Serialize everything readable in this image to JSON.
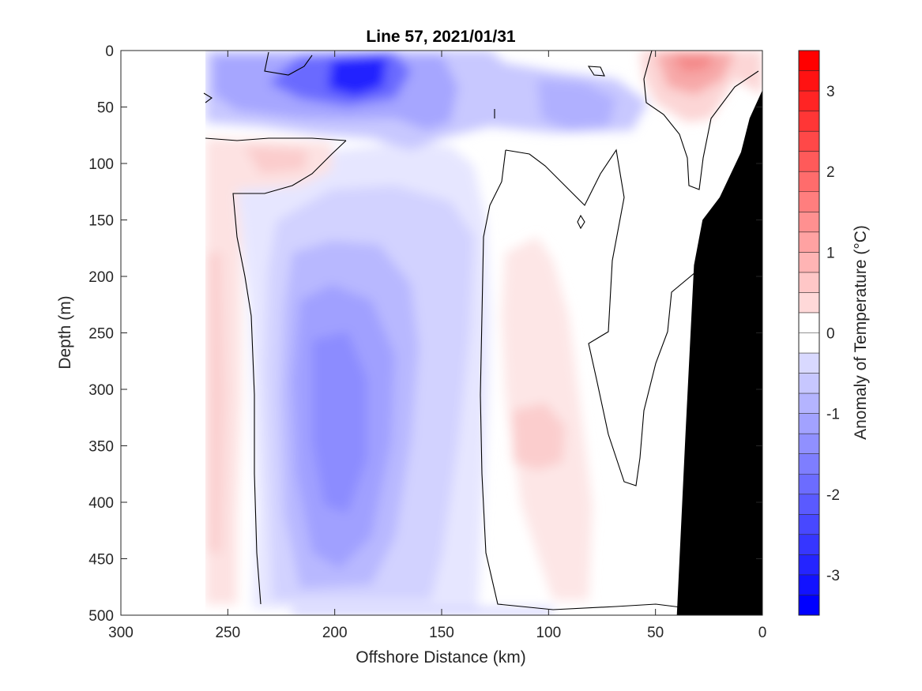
{
  "chart_data": {
    "type": "heatmap",
    "subtype": "filled-contour",
    "title": "Line 57, 2021/01/31",
    "xlabel": "Offshore Distance (km)",
    "ylabel": "Depth (m)",
    "xlim": [
      300,
      0
    ],
    "ylim": [
      500,
      0
    ],
    "x_reversed": true,
    "y_reversed": true,
    "xticks": [
      300,
      250,
      200,
      150,
      100,
      50,
      0
    ],
    "yticks": [
      0,
      50,
      100,
      150,
      200,
      250,
      300,
      350,
      400,
      450,
      500
    ],
    "colorbar": {
      "label": "Anomaly of Temperature (°C)",
      "range": [
        -3.5,
        3.5
      ],
      "step": 0.25,
      "ticks": [
        3,
        2,
        1,
        0,
        -1,
        -2,
        -3
      ],
      "negative_color": "#0000ff",
      "positive_color": "#ff0000",
      "zero_color": "#ffffff"
    },
    "data_x_extent": [
      260,
      0
    ],
    "zero_contour_shown": true,
    "bathymetry": {
      "color": "#000000",
      "points": [
        [
          0,
          35
        ],
        [
          6,
          60
        ],
        [
          10,
          90
        ],
        [
          20,
          130
        ],
        [
          28,
          150
        ],
        [
          32,
          190
        ],
        [
          36,
          340
        ],
        [
          40,
          500
        ],
        [
          0,
          500
        ]
      ]
    },
    "features": [
      {
        "name": "cold core surface",
        "x": 190,
        "depth": 35,
        "anomaly": -3.0
      },
      {
        "name": "cold subsurface core",
        "x": 200,
        "depth": 340,
        "anomaly": -1.5
      },
      {
        "name": "warm offshore band",
        "x": 255,
        "depth": 300,
        "anomaly": 0.5
      },
      {
        "name": "warm subsurface patch",
        "x": 115,
        "depth": 330,
        "anomaly": 0.5
      },
      {
        "name": "warm nearshore surface",
        "x": 33,
        "depth": 20,
        "anomaly": 1.0
      }
    ]
  }
}
